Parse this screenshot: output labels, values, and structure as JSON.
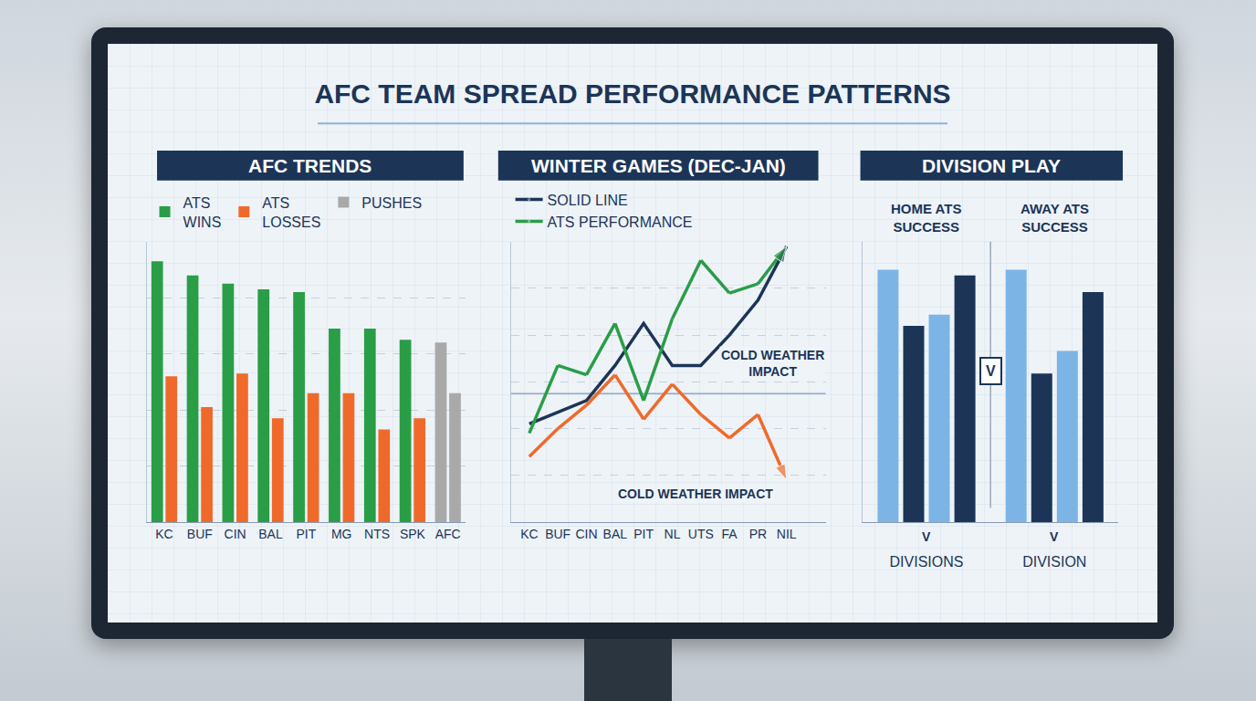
{
  "title": "AFC TEAM SPREAD PERFORMANCE PATTERNS",
  "chart_data": [
    {
      "type": "bar",
      "title": "AFC TRENDS",
      "categories": [
        "KC",
        "BUF",
        "CIN",
        "BAL",
        "PIT",
        "MG",
        "NTS",
        "SPK",
        "AFC"
      ],
      "series": [
        {
          "name": "ATS WINS",
          "color": "#2a9d47",
          "colors": [
            "#2a9d47",
            "#2a9d47",
            "#2a9d47",
            "#2a9d47",
            "#2a9d47",
            "#2a9d47",
            "#2a9d47",
            "#2a9d47",
            "#a9a9a9"
          ],
          "values": [
            93,
            88,
            85,
            83,
            82,
            69,
            69,
            65,
            64
          ]
        },
        {
          "name": "ATS LOSSES",
          "color": "#ef6a2a",
          "colors": [
            "#ef6a2a",
            "#ef6a2a",
            "#ef6a2a",
            "#ef6a2a",
            "#ef6a2a",
            "#ef6a2a",
            "#ef6a2a",
            "#ef6a2a",
            "#a9a9a9"
          ],
          "values": [
            52,
            41,
            53,
            37,
            46,
            46,
            33,
            37,
            46
          ]
        },
        {
          "name": "PUSHES",
          "color": "#a9a9a9",
          "values": [
            null,
            null,
            null,
            null,
            null,
            null,
            null,
            null,
            null
          ]
        }
      ],
      "ylim": [
        0,
        100
      ],
      "yticks": [
        0,
        20,
        40,
        60,
        80,
        100
      ],
      "grid": true,
      "legend": "top",
      "tick_labels": "x"
    },
    {
      "type": "line",
      "title": "WINTER GAMES (DEC-JAN)",
      "categories": [
        "KC",
        "BUF",
        "CIN",
        "BAL",
        "PIT",
        "NL",
        "UTS",
        "FA",
        "PR",
        "NIL"
      ],
      "series": [
        {
          "name": "SOLID LINE",
          "color": "#1c3557",
          "line_style": "solid",
          "marker": "arrow",
          "values": [
            42,
            47,
            52,
            67,
            85,
            67,
            67,
            80,
            95,
            118
          ]
        },
        {
          "name": "ATS PERFORMANCE",
          "color": "#2a9d47",
          "line_style": "solid",
          "marker": "arrow",
          "values": [
            38,
            67,
            63,
            85,
            52,
            87,
            112,
            98,
            102,
            118
          ]
        },
        {
          "color": "#ef6a2a",
          "line_style": "solid",
          "marker": "arrow",
          "values": [
            28,
            40,
            50,
            63,
            44,
            59,
            46,
            36,
            46,
            18
          ]
        }
      ],
      "threshold": 55,
      "annotations": [
        {
          "text": "COLD WEATHER IMPACT",
          "x": 8.5,
          "y": 68
        },
        {
          "text": "COLD WEATHER IMPACT",
          "x": 5.8,
          "y": 12
        }
      ],
      "ylim": [
        0,
        120
      ],
      "yticks": [
        0,
        20,
        40,
        60,
        80,
        100,
        120
      ],
      "grid": true,
      "legend": "top",
      "tick_labels": "x"
    },
    {
      "type": "bar",
      "title": "DIVISION PLAY",
      "categories": [
        "DIVISIONS",
        "DIVISION"
      ],
      "group_titles": [
        "HOME ATS SUCCESS",
        "AWAY ATS SUCCESS"
      ],
      "series": [
        {
          "color": "#7db4e6",
          "values": [
            90,
            90
          ]
        },
        {
          "color": "#1c3557",
          "values": [
            70,
            53
          ]
        },
        {
          "color": "#7db4e6",
          "values": [
            74,
            61
          ]
        },
        {
          "color": "#1c3557",
          "values": [
            88,
            82
          ]
        }
      ],
      "annotations": [
        {
          "text": "V",
          "x": 0.5,
          "y": 54
        },
        {
          "text": "V",
          "x": 0
        },
        {
          "text": "V",
          "x": 1
        }
      ],
      "ylim": [
        0,
        100
      ],
      "yticks": [
        0,
        20,
        40,
        60,
        80,
        100
      ],
      "grid": false,
      "tick_labels": "x"
    }
  ]
}
